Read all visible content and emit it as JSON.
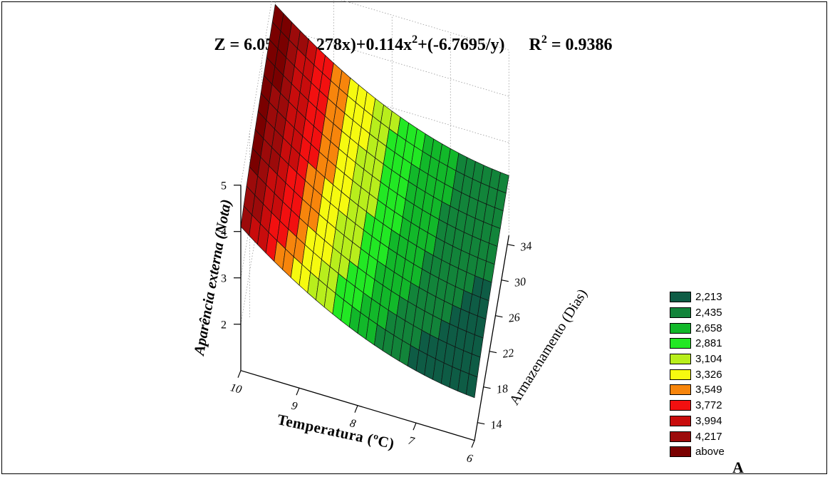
{
  "chart_data": {
    "type": "surface",
    "title": {
      "pre": "Z = 6.050+(-1.278x)+0.114x",
      "sup1": "2",
      "mid": "+(-6.7695/y)",
      "r2": "R",
      "sup2": "2",
      "r2val": " = 0.9386"
    },
    "equation": {
      "a": 6.05,
      "b": -1.278,
      "c": 0.114,
      "d": -6.7695
    },
    "xlabel": "Temperatura (ºC)",
    "ylabel": "Armazenamento (Dias)",
    "zlabel": "Aparência externa (Nota)",
    "x_ticks": [
      "10",
      "9",
      "8",
      "7",
      "6"
    ],
    "y_ticks": [
      "14",
      "18",
      "22",
      "26",
      "30",
      "34"
    ],
    "z_ticks": [
      "5",
      "4",
      "3",
      "2"
    ],
    "xlim": [
      6,
      10
    ],
    "ylim": [
      12,
      35
    ],
    "zlim": [
      1,
      5
    ],
    "legend": {
      "placement": "bottom-right",
      "items": [
        {
          "label": "2,213",
          "color": "#0e5c45"
        },
        {
          "label": "2,435",
          "color": "#12843a"
        },
        {
          "label": "2,658",
          "color": "#12b82a"
        },
        {
          "label": "2,881",
          "color": "#22e824"
        },
        {
          "label": "3,104",
          "color": "#b8ee1c"
        },
        {
          "label": "3,326",
          "color": "#f6fa10"
        },
        {
          "label": "3,549",
          "color": "#f7850c"
        },
        {
          "label": "3,772",
          "color": "#f21010"
        },
        {
          "label": "3,994",
          "color": "#c80c0c"
        },
        {
          "label": "4,217",
          "color": "#9c0a0a"
        },
        {
          "label": "above",
          "color": "#7a0000"
        }
      ]
    },
    "panel_label": "A"
  }
}
